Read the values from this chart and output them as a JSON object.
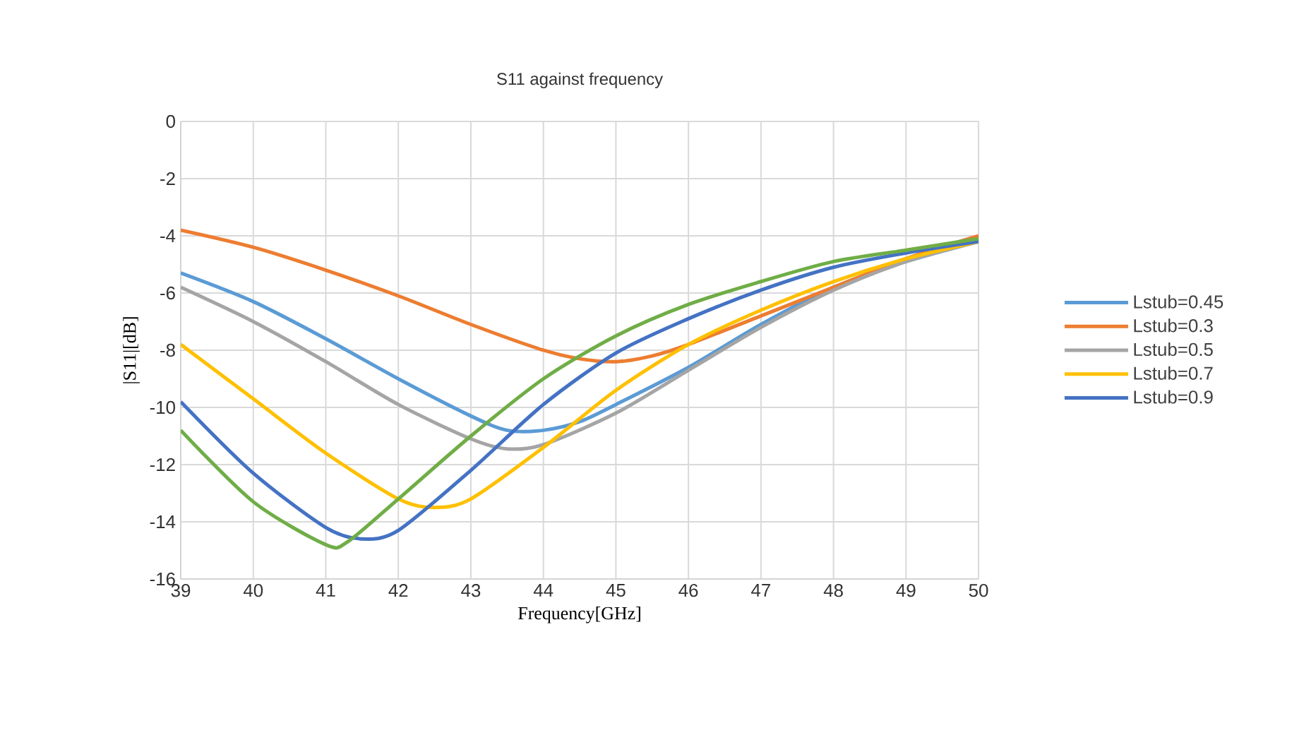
{
  "chart_data": {
    "type": "line",
    "title": "S11 against frequency",
    "xlabel": "Frequency[GHz]",
    "ylabel": "|S11|[dB]",
    "xlim": [
      39,
      50
    ],
    "xticks": [
      39,
      40,
      41,
      42,
      43,
      44,
      45,
      46,
      47,
      48,
      49,
      50
    ],
    "ylim": [
      -16,
      0
    ],
    "yticks": [
      -16,
      -14,
      -12,
      -10,
      -8,
      -6,
      -4,
      -2,
      0
    ],
    "grid": true,
    "legend": "right",
    "marker": "none",
    "line_style": "solid",
    "series": [
      {
        "name": "Lstub=0.45",
        "color": "#5b9bd5",
        "x": [
          39,
          40,
          41,
          42,
          43,
          43.5,
          44,
          44.5,
          45,
          46,
          47,
          48,
          49,
          50
        ],
        "values": [
          -5.3,
          -6.3,
          -7.6,
          -9.0,
          -10.3,
          -10.8,
          -10.8,
          -10.5,
          -9.9,
          -8.6,
          -7.1,
          -5.8,
          -4.9,
          -4.2
        ]
      },
      {
        "name": "Lstub=0.3",
        "color": "#ed7d31",
        "x": [
          39,
          40,
          41,
          42,
          43,
          44,
          44.5,
          45,
          45.5,
          46,
          47,
          48,
          49,
          50
        ],
        "values": [
          -3.8,
          -4.4,
          -5.2,
          -6.1,
          -7.1,
          -8.0,
          -8.3,
          -8.4,
          -8.2,
          -7.8,
          -6.8,
          -5.8,
          -4.8,
          -4.0
        ]
      },
      {
        "name": "Lstub=0.5",
        "color": "#a5a5a5",
        "x": [
          39,
          40,
          41,
          42,
          43,
          43.5,
          44,
          45,
          46,
          47,
          48,
          49,
          50
        ],
        "values": [
          -5.8,
          -7.0,
          -8.4,
          -9.9,
          -11.1,
          -11.45,
          -11.3,
          -10.2,
          -8.7,
          -7.2,
          -5.9,
          -4.9,
          -4.2
        ]
      },
      {
        "name": "Lstub=0.7",
        "color": "#ffc000",
        "x": [
          39,
          40,
          41,
          42,
          42.5,
          43,
          44,
          45,
          46,
          47,
          48,
          49,
          50
        ],
        "values": [
          -7.8,
          -9.7,
          -11.6,
          -13.2,
          -13.5,
          -13.2,
          -11.4,
          -9.4,
          -7.8,
          -6.6,
          -5.6,
          -4.8,
          -4.2
        ]
      },
      {
        "name": "Lstub=0.9",
        "color": "#4472c4",
        "x": [
          39,
          40,
          41,
          41.5,
          42,
          43,
          44,
          45,
          46,
          47,
          48,
          49,
          50
        ],
        "values": [
          -9.8,
          -12.3,
          -14.2,
          -14.6,
          -14.3,
          -12.2,
          -9.9,
          -8.1,
          -6.9,
          -5.9,
          -5.1,
          -4.6,
          -4.2
        ]
      },
      {
        "color": "#70ad47",
        "x": [
          39,
          40,
          41,
          41.3,
          42,
          43,
          44,
          45,
          46,
          47,
          48,
          49,
          50
        ],
        "values": [
          -10.8,
          -13.3,
          -14.8,
          -14.7,
          -13.2,
          -11.0,
          -9.0,
          -7.5,
          -6.4,
          -5.6,
          -4.9,
          -4.5,
          -4.1
        ]
      }
    ]
  }
}
